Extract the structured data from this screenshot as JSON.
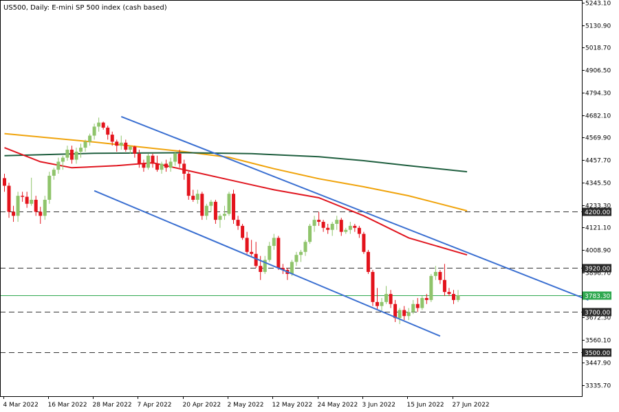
{
  "chart_data": {
    "type": "candlestick",
    "title": "US500, Daily:  E-mini SP 500 index (cash based)",
    "ylim": [
      3280,
      5243.1
    ],
    "grid": false,
    "y_ticks": [
      "5243.10",
      "5130.90",
      "5018.70",
      "4906.50",
      "4794.30",
      "4682.10",
      "4569.90",
      "4457.70",
      "4345.50",
      "4233.30",
      "4121.10",
      "4008.90",
      "3896.70",
      "3672.30",
      "3560.10",
      "3447.90",
      "3335.70"
    ],
    "x_ticks": [
      {
        "label": "4 Mar 2022",
        "index": 0
      },
      {
        "label": "16 Mar 2022",
        "index": 10
      },
      {
        "label": "28 Mar 2022",
        "index": 20
      },
      {
        "label": "7 Apr 2022",
        "index": 30
      },
      {
        "label": "20 Apr 2022",
        "index": 40
      },
      {
        "label": "2 May 2022",
        "index": 50
      },
      {
        "label": "12 May 2022",
        "index": 60
      },
      {
        "label": "24 May 2022",
        "index": 70
      },
      {
        "label": "3 Jun 2022",
        "index": 80
      },
      {
        "label": "15 Jun 2022",
        "index": 90
      },
      {
        "label": "27 Jun 2022",
        "index": 100
      }
    ],
    "candles": [
      {
        "o": 4368,
        "h": 4390,
        "l": 4300,
        "c": 4330
      },
      {
        "o": 4330,
        "h": 4345,
        "l": 4170,
        "c": 4200
      },
      {
        "o": 4200,
        "h": 4230,
        "l": 4150,
        "c": 4180
      },
      {
        "o": 4180,
        "h": 4300,
        "l": 4150,
        "c": 4280
      },
      {
        "o": 4280,
        "h": 4300,
        "l": 4250,
        "c": 4275
      },
      {
        "o": 4275,
        "h": 4300,
        "l": 4220,
        "c": 4240
      },
      {
        "o": 4240,
        "h": 4370,
        "l": 4230,
        "c": 4260
      },
      {
        "o": 4260,
        "h": 4280,
        "l": 4180,
        "c": 4200
      },
      {
        "o": 4200,
        "h": 4225,
        "l": 4140,
        "c": 4180
      },
      {
        "o": 4180,
        "h": 4280,
        "l": 4160,
        "c": 4260
      },
      {
        "o": 4260,
        "h": 4400,
        "l": 4240,
        "c": 4380
      },
      {
        "o": 4380,
        "h": 4420,
        "l": 4360,
        "c": 4410
      },
      {
        "o": 4410,
        "h": 4470,
        "l": 4390,
        "c": 4450
      },
      {
        "o": 4450,
        "h": 4480,
        "l": 4410,
        "c": 4470
      },
      {
        "o": 4470,
        "h": 4530,
        "l": 4455,
        "c": 4510
      },
      {
        "o": 4510,
        "h": 4530,
        "l": 4440,
        "c": 4460
      },
      {
        "o": 4460,
        "h": 4520,
        "l": 4440,
        "c": 4500
      },
      {
        "o": 4500,
        "h": 4540,
        "l": 4470,
        "c": 4520
      },
      {
        "o": 4520,
        "h": 4560,
        "l": 4500,
        "c": 4550
      },
      {
        "o": 4550,
        "h": 4590,
        "l": 4530,
        "c": 4580
      },
      {
        "o": 4580,
        "h": 4640,
        "l": 4560,
        "c": 4625
      },
      {
        "o": 4625,
        "h": 4670,
        "l": 4600,
        "c": 4645
      },
      {
        "o": 4645,
        "h": 4650,
        "l": 4610,
        "c": 4620
      },
      {
        "o": 4620,
        "h": 4630,
        "l": 4560,
        "c": 4585
      },
      {
        "o": 4585,
        "h": 4600,
        "l": 4530,
        "c": 4550
      },
      {
        "o": 4550,
        "h": 4560,
        "l": 4500,
        "c": 4530
      },
      {
        "o": 4530,
        "h": 4580,
        "l": 4510,
        "c": 4545
      },
      {
        "o": 4545,
        "h": 4560,
        "l": 4500,
        "c": 4510
      },
      {
        "o": 4510,
        "h": 4530,
        "l": 4490,
        "c": 4525
      },
      {
        "o": 4525,
        "h": 4530,
        "l": 4470,
        "c": 4490
      },
      {
        "o": 4490,
        "h": 4510,
        "l": 4420,
        "c": 4440
      },
      {
        "o": 4440,
        "h": 4460,
        "l": 4400,
        "c": 4420
      },
      {
        "o": 4420,
        "h": 4490,
        "l": 4410,
        "c": 4480
      },
      {
        "o": 4480,
        "h": 4490,
        "l": 4420,
        "c": 4440
      },
      {
        "o": 4440,
        "h": 4480,
        "l": 4400,
        "c": 4410
      },
      {
        "o": 4410,
        "h": 4450,
        "l": 4390,
        "c": 4440
      },
      {
        "o": 4440,
        "h": 4460,
        "l": 4400,
        "c": 4420
      },
      {
        "o": 4420,
        "h": 4470,
        "l": 4400,
        "c": 4450
      },
      {
        "o": 4450,
        "h": 4500,
        "l": 4430,
        "c": 4490
      },
      {
        "o": 4490,
        "h": 4510,
        "l": 4420,
        "c": 4440
      },
      {
        "o": 4440,
        "h": 4460,
        "l": 4360,
        "c": 4390
      },
      {
        "o": 4390,
        "h": 4400,
        "l": 4260,
        "c": 4280
      },
      {
        "o": 4280,
        "h": 4310,
        "l": 4250,
        "c": 4260
      },
      {
        "o": 4260,
        "h": 4310,
        "l": 4240,
        "c": 4290
      },
      {
        "o": 4290,
        "h": 4300,
        "l": 4160,
        "c": 4180
      },
      {
        "o": 4180,
        "h": 4240,
        "l": 4160,
        "c": 4230
      },
      {
        "o": 4230,
        "h": 4260,
        "l": 4200,
        "c": 4250
      },
      {
        "o": 4250,
        "h": 4260,
        "l": 4140,
        "c": 4160
      },
      {
        "o": 4160,
        "h": 4190,
        "l": 4120,
        "c": 4180
      },
      {
        "o": 4180,
        "h": 4230,
        "l": 4160,
        "c": 4190
      },
      {
        "o": 4190,
        "h": 4300,
        "l": 4180,
        "c": 4290
      },
      {
        "o": 4290,
        "h": 4310,
        "l": 4140,
        "c": 4160
      },
      {
        "o": 4160,
        "h": 4180,
        "l": 4110,
        "c": 4130
      },
      {
        "o": 4130,
        "h": 4140,
        "l": 4060,
        "c": 4070
      },
      {
        "o": 4070,
        "h": 4100,
        "l": 3990,
        "c": 4000
      },
      {
        "o": 4000,
        "h": 4060,
        "l": 3980,
        "c": 3990
      },
      {
        "o": 3990,
        "h": 4050,
        "l": 3920,
        "c": 3930
      },
      {
        "o": 3930,
        "h": 3980,
        "l": 3860,
        "c": 3900
      },
      {
        "o": 3900,
        "h": 3980,
        "l": 3890,
        "c": 3960
      },
      {
        "o": 3960,
        "h": 4050,
        "l": 3950,
        "c": 4030
      },
      {
        "o": 4030,
        "h": 4090,
        "l": 4010,
        "c": 4070
      },
      {
        "o": 4070,
        "h": 4080,
        "l": 3910,
        "c": 3920
      },
      {
        "o": 3920,
        "h": 3940,
        "l": 3890,
        "c": 3910
      },
      {
        "o": 3910,
        "h": 3920,
        "l": 3860,
        "c": 3890
      },
      {
        "o": 3890,
        "h": 3960,
        "l": 3880,
        "c": 3950
      },
      {
        "o": 3950,
        "h": 4000,
        "l": 3930,
        "c": 3985
      },
      {
        "o": 3985,
        "h": 4010,
        "l": 3950,
        "c": 4000
      },
      {
        "o": 4000,
        "h": 4060,
        "l": 3980,
        "c": 4050
      },
      {
        "o": 4050,
        "h": 4140,
        "l": 4040,
        "c": 4130
      },
      {
        "o": 4130,
        "h": 4180,
        "l": 4100,
        "c": 4160
      },
      {
        "o": 4160,
        "h": 4200,
        "l": 4130,
        "c": 4150
      },
      {
        "o": 4150,
        "h": 4160,
        "l": 4100,
        "c": 4120
      },
      {
        "o": 4120,
        "h": 4140,
        "l": 4090,
        "c": 4110
      },
      {
        "o": 4110,
        "h": 4150,
        "l": 4080,
        "c": 4140
      },
      {
        "o": 4140,
        "h": 4180,
        "l": 4110,
        "c": 4160
      },
      {
        "o": 4160,
        "h": 4170,
        "l": 4080,
        "c": 4100
      },
      {
        "o": 4100,
        "h": 4120,
        "l": 4090,
        "c": 4110
      },
      {
        "o": 4110,
        "h": 4150,
        "l": 4090,
        "c": 4130
      },
      {
        "o": 4130,
        "h": 4140,
        "l": 4100,
        "c": 4120
      },
      {
        "o": 4120,
        "h": 4130,
        "l": 4070,
        "c": 4090
      },
      {
        "o": 4090,
        "h": 4100,
        "l": 3990,
        "c": 4000
      },
      {
        "o": 4000,
        "h": 4010,
        "l": 3890,
        "c": 3900
      },
      {
        "o": 3900,
        "h": 3910,
        "l": 3730,
        "c": 3750
      },
      {
        "o": 3750,
        "h": 3820,
        "l": 3710,
        "c": 3730
      },
      {
        "o": 3730,
        "h": 3770,
        "l": 3700,
        "c": 3750
      },
      {
        "o": 3750,
        "h": 3830,
        "l": 3740,
        "c": 3790
      },
      {
        "o": 3790,
        "h": 3810,
        "l": 3720,
        "c": 3740
      },
      {
        "o": 3740,
        "h": 3760,
        "l": 3650,
        "c": 3670
      },
      {
        "o": 3670,
        "h": 3720,
        "l": 3640,
        "c": 3710
      },
      {
        "o": 3710,
        "h": 3730,
        "l": 3660,
        "c": 3680
      },
      {
        "o": 3680,
        "h": 3720,
        "l": 3660,
        "c": 3700
      },
      {
        "o": 3700,
        "h": 3760,
        "l": 3690,
        "c": 3740
      },
      {
        "o": 3740,
        "h": 3770,
        "l": 3700,
        "c": 3720
      },
      {
        "o": 3720,
        "h": 3780,
        "l": 3710,
        "c": 3770
      },
      {
        "o": 3770,
        "h": 3790,
        "l": 3740,
        "c": 3760
      },
      {
        "o": 3760,
        "h": 3890,
        "l": 3750,
        "c": 3880
      },
      {
        "o": 3880,
        "h": 3930,
        "l": 3860,
        "c": 3900
      },
      {
        "o": 3900,
        "h": 3910,
        "l": 3840,
        "c": 3860
      },
      {
        "o": 3860,
        "h": 3940,
        "l": 3780,
        "c": 3800
      },
      {
        "o": 3800,
        "h": 3820,
        "l": 3780,
        "c": 3790
      },
      {
        "o": 3790,
        "h": 3810,
        "l": 3740,
        "c": 3760
      },
      {
        "o": 3760,
        "h": 3810,
        "l": 3750,
        "c": 3783
      }
    ],
    "moving_averages": [
      {
        "color": "#f0a30a",
        "points": [
          [
            0,
            4590
          ],
          [
            20,
            4548
          ],
          [
            40,
            4500
          ],
          [
            50,
            4472
          ],
          [
            60,
            4415
          ],
          [
            70,
            4365
          ],
          [
            80,
            4325
          ],
          [
            90,
            4280
          ],
          [
            103,
            4205
          ]
        ]
      },
      {
        "color": "#1e5e3e",
        "points": [
          [
            0,
            4480
          ],
          [
            20,
            4492
          ],
          [
            40,
            4495
          ],
          [
            55,
            4490
          ],
          [
            70,
            4475
          ],
          [
            80,
            4455
          ],
          [
            90,
            4430
          ],
          [
            103,
            4400
          ]
        ]
      },
      {
        "color": "#e0151f",
        "points": [
          [
            0,
            4520
          ],
          [
            8,
            4450
          ],
          [
            15,
            4420
          ],
          [
            25,
            4430
          ],
          [
            33,
            4445
          ],
          [
            42,
            4400
          ],
          [
            50,
            4360
          ],
          [
            60,
            4310
          ],
          [
            70,
            4270
          ],
          [
            80,
            4180
          ],
          [
            90,
            4070
          ],
          [
            103,
            3985
          ]
        ]
      }
    ],
    "trend_lines": [
      {
        "from": [
          26,
          4675
        ],
        "to": [
          130,
          3760
        ]
      },
      {
        "from": [
          20,
          4305
        ],
        "to": [
          97,
          3580
        ]
      }
    ],
    "levels": [
      {
        "value": 4200,
        "label": "4200.00",
        "style": "dashed"
      },
      {
        "value": 3920,
        "label": "3920.00",
        "style": "dashed"
      },
      {
        "value": 3783.3,
        "label": "3783.30",
        "style": "current"
      },
      {
        "value": 3700,
        "label": "3700.00",
        "style": "dashed"
      },
      {
        "value": 3500,
        "label": "3500.00",
        "style": "dashed"
      }
    ],
    "colors": {
      "bull": "#8fc46b",
      "bear": "#e3131c",
      "trend": "#3a6fd1",
      "level": "#333333",
      "current": "#2fa84f"
    }
  }
}
